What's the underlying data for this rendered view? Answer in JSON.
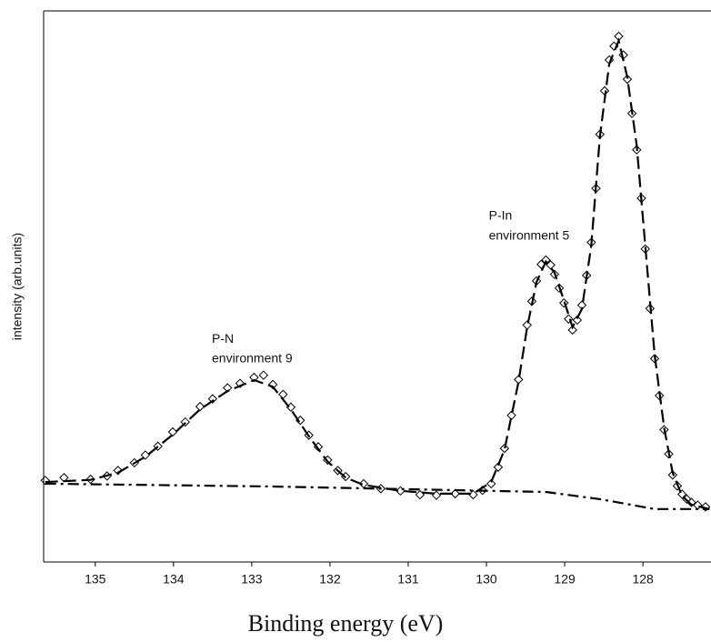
{
  "chart_data": {
    "type": "line",
    "ylabel": "intensity (arb.units)",
    "xlabel": "Binding energy (eV)",
    "xlim": [
      135.66,
      127.13
    ],
    "xticks": [
      135,
      134,
      133,
      132,
      131,
      130,
      129,
      128
    ],
    "ylim": [
      0,
      100
    ],
    "annotations": [
      {
        "text": "P-In",
        "x": 129.97,
        "y": 62.7
      },
      {
        "text": "environment 5",
        "x": 129.97,
        "y": 59.1
      },
      {
        "text": "P-N",
        "x": 133.51,
        "y": 40.4
      },
      {
        "text": "environment 9",
        "x": 133.51,
        "y": 36.8
      }
    ],
    "series": [
      {
        "style": "markers",
        "color": "#000000",
        "x": [
          135.64,
          135.4,
          135.06,
          134.85,
          134.71,
          134.5,
          134.36,
          134.2,
          134.01,
          133.85,
          133.66,
          133.5,
          133.31,
          133.15,
          132.97,
          132.85,
          132.73,
          132.6,
          132.5,
          132.38,
          132.27,
          132.15,
          132.03,
          131.9,
          131.8,
          131.57,
          131.35,
          131.1,
          130.85,
          130.64,
          130.4,
          130.17,
          130.05,
          129.94,
          129.85,
          129.77,
          129.68,
          129.59,
          129.48,
          129.42,
          129.36,
          129.3,
          129.24,
          129.18,
          129.13,
          129.07,
          129.01,
          128.95,
          128.9,
          128.84,
          128.78,
          128.72,
          128.66,
          128.6,
          128.55,
          128.49,
          128.43,
          128.37,
          128.31,
          128.25,
          128.2,
          128.14,
          128.08,
          128.02,
          127.97,
          127.91,
          127.85,
          127.79,
          127.73,
          127.67,
          127.62,
          127.56,
          127.5,
          127.44,
          127.38,
          127.3,
          127.2
        ],
        "values": [
          14.8,
          15.3,
          15.0,
          15.6,
          16.6,
          18.0,
          19.4,
          21.0,
          23.6,
          25.4,
          28.2,
          29.6,
          31.6,
          32.4,
          33.5,
          33.9,
          32.2,
          30.4,
          28.1,
          25.7,
          23.0,
          20.9,
          18.5,
          16.6,
          15.5,
          14.2,
          13.3,
          12.9,
          12.2,
          12.1,
          12.4,
          12.2,
          13.0,
          14.2,
          17.2,
          20.6,
          26.6,
          33.1,
          43.0,
          47.3,
          51.0,
          54.0,
          54.8,
          53.9,
          52.2,
          49.7,
          47.0,
          44.1,
          42.1,
          43.9,
          46.6,
          52.0,
          58.0,
          67.8,
          77.6,
          85.5,
          91.1,
          93.6,
          95.4,
          92.0,
          87.6,
          81.4,
          74.8,
          66.0,
          56.8,
          46.0,
          36.9,
          30.2,
          24.0,
          19.6,
          15.8,
          13.8,
          12.3,
          11.4,
          10.8,
          10.3,
          10.0
        ]
      },
      {
        "style": "dashed",
        "color": "#000000",
        "x": [
          135.64,
          135.06,
          134.71,
          134.36,
          134.01,
          133.66,
          133.31,
          132.97,
          132.73,
          132.5,
          132.27,
          132.03,
          131.8,
          131.57,
          131.1,
          130.64,
          130.17,
          129.94,
          129.77,
          129.59,
          129.48,
          129.36,
          129.24,
          129.13,
          129.01,
          128.9,
          128.78,
          128.66,
          128.55,
          128.43,
          128.31,
          128.2,
          128.08,
          127.97,
          127.85,
          127.73,
          127.62,
          127.5,
          127.38,
          127.15
        ],
        "values": [
          14.5,
          14.9,
          16.2,
          19.1,
          23.1,
          27.7,
          31.0,
          33.0,
          31.8,
          27.7,
          22.8,
          18.2,
          15.3,
          14.0,
          12.9,
          12.4,
          12.4,
          14.5,
          20.3,
          32.7,
          42.6,
          50.8,
          54.5,
          52.5,
          47.5,
          42.6,
          45.9,
          57.4,
          77.2,
          90.4,
          94.6,
          88.0,
          75.6,
          57.4,
          37.6,
          24.4,
          16.2,
          12.0,
          10.4,
          9.6
        ]
      },
      {
        "style": "dashdot",
        "color": "#000000",
        "x": [
          135.64,
          132.73,
          129.94,
          129.24,
          128.55,
          127.85,
          127.15
        ],
        "values": [
          14.2,
          13.7,
          12.9,
          12.7,
          11.4,
          9.6,
          9.6
        ]
      }
    ]
  }
}
